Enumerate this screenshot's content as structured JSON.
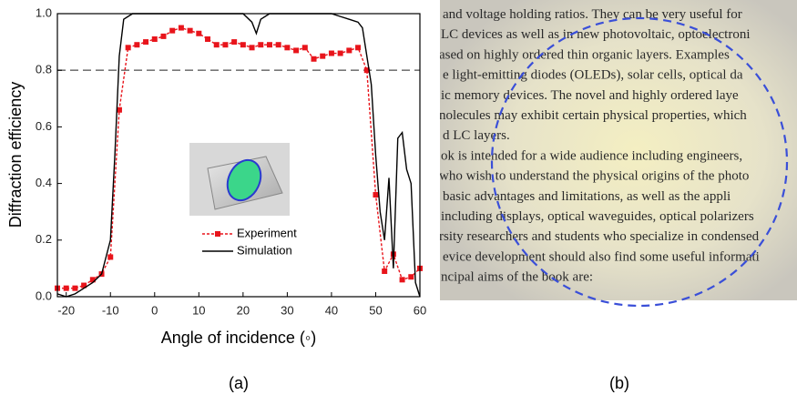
{
  "chart_data": {
    "type": "line",
    "xlabel": "Angle of incidence (◦)",
    "ylabel": "Diffraction efficiency",
    "xlim": [
      -22,
      60
    ],
    "ylim": [
      0,
      1.0
    ],
    "xticks": [
      -20,
      -10,
      0,
      10,
      20,
      30,
      40,
      50,
      60
    ],
    "yticks": [
      {
        "value": 0,
        "label": "0.0"
      },
      0.2,
      0.4,
      0.6,
      0.8,
      {
        "value": 1,
        "label": "1.0"
      }
    ],
    "reference_line": 0.8,
    "legend": "lower right",
    "series": [
      {
        "name": "Experiment",
        "color": "#e8141b",
        "x": [
          -22,
          -20,
          -18,
          -16,
          -14,
          -12,
          -10,
          -8,
          -6,
          -4,
          -2,
          0,
          2,
          4,
          6,
          8,
          10,
          12,
          14,
          16,
          18,
          20,
          22,
          24,
          26,
          28,
          30,
          32,
          34,
          36,
          38,
          40,
          42,
          44,
          46,
          48,
          50,
          52,
          54,
          56,
          58,
          60
        ],
        "values": [
          0.03,
          0.03,
          0.03,
          0.04,
          0.06,
          0.08,
          0.14,
          0.66,
          0.88,
          0.89,
          0.9,
          0.91,
          0.92,
          0.94,
          0.95,
          0.94,
          0.93,
          0.91,
          0.89,
          0.89,
          0.9,
          0.89,
          0.88,
          0.89,
          0.89,
          0.89,
          0.88,
          0.87,
          0.88,
          0.84,
          0.85,
          0.86,
          0.86,
          0.87,
          0.88,
          0.8,
          0.36,
          0.09,
          0.15,
          0.06,
          0.07,
          0.1
        ]
      },
      {
        "name": "Simulation",
        "color": "#000000",
        "x": [
          -22,
          -20,
          -18,
          -16,
          -14,
          -12,
          -10,
          -9,
          -8,
          -7,
          -5,
          0,
          10,
          15,
          20,
          22,
          23,
          24,
          26,
          32,
          35,
          40,
          42,
          44,
          46,
          47,
          48,
          49,
          50,
          51,
          52,
          53,
          54,
          55,
          56,
          57,
          58,
          59,
          60
        ],
        "values": [
          0.01,
          0.0,
          0.01,
          0.03,
          0.05,
          0.08,
          0.2,
          0.5,
          0.85,
          0.98,
          1.0,
          1.0,
          1.0,
          1.0,
          1.0,
          0.97,
          0.93,
          0.98,
          1.0,
          1.0,
          1.0,
          1.0,
          0.99,
          0.98,
          0.97,
          0.95,
          0.85,
          0.75,
          0.5,
          0.3,
          0.2,
          0.42,
          0.1,
          0.56,
          0.58,
          0.45,
          0.4,
          0.05,
          0.0
        ]
      }
    ]
  },
  "photo": {
    "lines": [
      "and voltage holding ratios. They can be very useful for",
      "LC devices as well as in new photovoltaic, optoelectroni",
      "ased on highly ordered thin organic layers. Examples",
      "e light-emitting diodes (OLEDs), solar cells, optical da",
      "ic memory devices. The novel and highly ordered laye",
      "nolecules may exhibit certain physical properties, which",
      "d LC layers.",
      "ok is intended for a wide audience including engineers,",
      "who wish to understand the physical origins of the photo",
      "basic advantages and limitations, as well as the appli",
      "including displays, optical waveguides, optical polarizers",
      "rsity researchers and students who specialize in condensed",
      "evice development should also find some useful informati",
      "ncipal aims of the book are:"
    ]
  },
  "panel_labels": [
    "(a)",
    "(b)"
  ]
}
